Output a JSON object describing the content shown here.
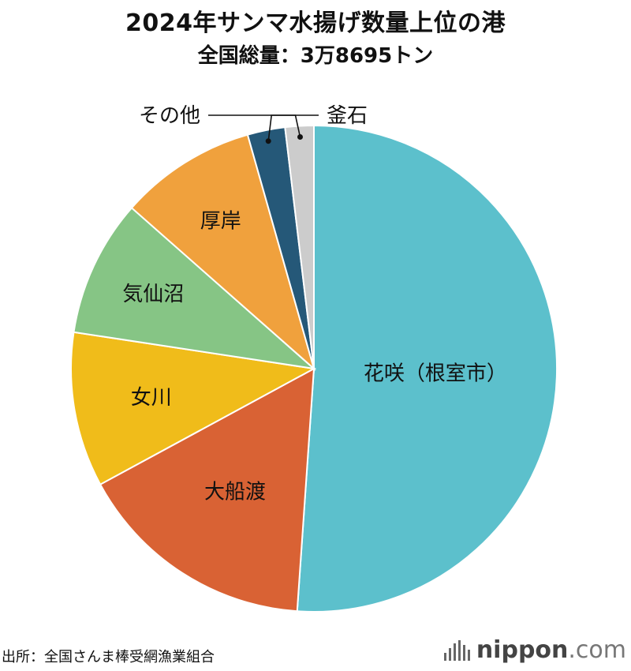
{
  "header": {
    "title": "2024年サンマ水揚げ数量上位の港",
    "subtitle": "全国総量：3万8695トン"
  },
  "footer": {
    "source": "出所：全国さんま棒受網漁業組合",
    "logo_main": "nippon",
    "logo_domain": ".com"
  },
  "chart_data": {
    "type": "pie",
    "title": "2024年サンマ水揚げ数量上位の港",
    "subtitle": "全国総量：3万8695トン",
    "start": "12 o'clock",
    "direction": "clockwise",
    "slices": [
      {
        "label": "花咲（根室市）",
        "value": 51.1,
        "color": "#5cc0cc"
      },
      {
        "label": "大船渡",
        "value": 16.0,
        "color": "#d96234"
      },
      {
        "label": "女川",
        "value": 10.3,
        "color": "#f0bc1a"
      },
      {
        "label": "気仙沼",
        "value": 9.1,
        "color": "#86c585"
      },
      {
        "label": "厚岸",
        "value": 9.1,
        "color": "#f0a13d"
      },
      {
        "label": "釜石",
        "value": 2.5,
        "color": "#255878"
      },
      {
        "label": "その他",
        "value": 1.9,
        "color": "#cccccc"
      }
    ]
  }
}
